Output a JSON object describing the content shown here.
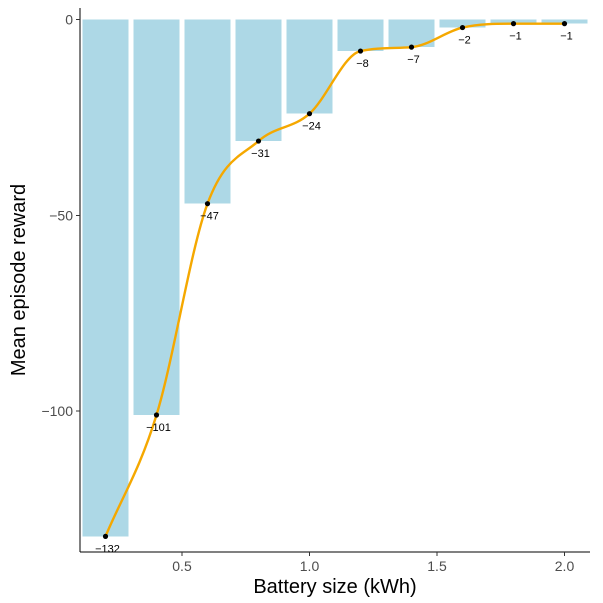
{
  "chart_data": {
    "type": "bar",
    "title": "",
    "xlabel": "Battery size (kWh)",
    "ylabel": "Mean episode reward",
    "x": [
      0.2,
      0.4,
      0.6,
      0.8,
      1.0,
      1.2,
      1.4,
      1.6,
      1.8,
      2.0
    ],
    "values": [
      -132,
      -101,
      -47,
      -31,
      -24,
      -8,
      -7,
      -2,
      -1,
      -1
    ],
    "data_labels": [
      "−132",
      "−101",
      "−47",
      "−31",
      "−24",
      "−8",
      "−7",
      "−2",
      "−1",
      "−1"
    ],
    "bar_width": 0.18,
    "xlim": [
      0.1,
      2.1
    ],
    "ylim": [
      -136,
      3
    ],
    "x_ticks": [
      0.5,
      1.0,
      1.5,
      2.0
    ],
    "x_tick_labels": [
      "0.5",
      "1.0",
      "1.5",
      "2.0"
    ],
    "y_ticks": [
      0,
      -50,
      -100
    ],
    "y_tick_labels": [
      "0",
      "−50",
      "−100"
    ],
    "overlays": {
      "points": true,
      "smooth_line": true
    },
    "grid": false,
    "legend": "none",
    "colors": {
      "bar": "#ADD8E6",
      "line": "#F5A800",
      "point": "#000000"
    }
  }
}
